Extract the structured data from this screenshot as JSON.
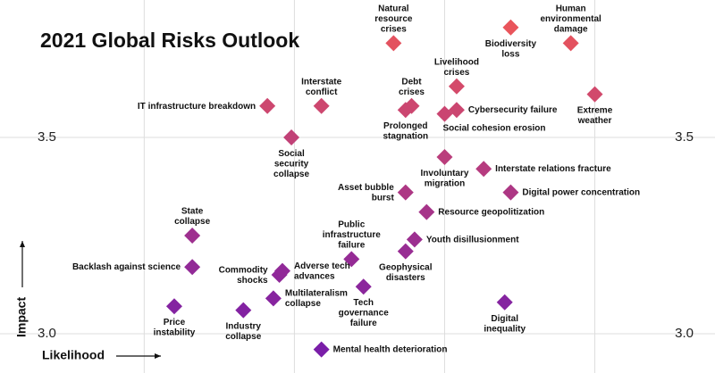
{
  "chart_data": {
    "type": "scatter",
    "title": "2021 Global Risks Outlook",
    "x_label": "Likelihood",
    "y_label": "Impact",
    "x": [
      3.83,
      4.22,
      4.42,
      4.5,
      4.04,
      3.89,
      3.87,
      4.04,
      4.0,
      3.41,
      3.59,
      3.49,
      4.0,
      4.13,
      4.22,
      3.87,
      3.94,
      3.69,
      3.9,
      3.87,
      3.16,
      3.16,
      3.45,
      3.46,
      3.43,
      3.73,
      3.1,
      3.33,
      4.2,
      3.59
    ],
    "values": [
      3.74,
      3.78,
      3.74,
      3.61,
      3.63,
      3.58,
      3.57,
      3.57,
      3.56,
      3.58,
      3.58,
      3.5,
      3.45,
      3.42,
      3.36,
      3.36,
      3.31,
      3.19,
      3.24,
      3.21,
      3.25,
      3.17,
      3.15,
      3.16,
      3.09,
      3.12,
      3.07,
      3.06,
      3.08,
      2.96
    ],
    "labels": [
      "Natural\nresource\ncrises",
      "Biodiversity\nloss",
      "Human\nenvironmental\ndamage",
      "Extreme\nweather",
      "Livelihood\ncrises",
      "Debt\ncrises",
      "Prolonged\nstagnation",
      "Cybersecurity failure",
      "Social cohesion erosion",
      "IT infrastructure breakdown",
      "Interstate\nconflict",
      "Social\nsecurity\ncollapse",
      "Involuntary\nmigration",
      "Interstate relations fracture",
      "Digital power concentration",
      "Asset bubble\nburst",
      "Resource geopolitization",
      "Public\ninfrastructure\nfailure",
      "Youth disillusionment",
      "Geophysical\ndisasters",
      "State\ncollapse",
      "Backlash against science",
      "Commodity\nshocks",
      "Adverse tech\nadvances",
      "Multilateralism\ncollapse",
      "Tech\ngovernance\nfailure",
      "Price\ninstability",
      "Industry\ncollapse",
      "Digital\ninequality",
      "Mental health deterioration"
    ],
    "xlim": [
      2.52,
      4.9
    ],
    "ylim": [
      2.9,
      3.85
    ],
    "xticks": [
      3,
      3.5,
      4,
      4.5
    ],
    "yticks": [
      {
        "value": 3,
        "label": "3.0"
      },
      {
        "value": 3.5,
        "label": "3.5"
      }
    ],
    "grid": true,
    "color_low": "#7a1ea8",
    "color_high": "#ec5659"
  }
}
